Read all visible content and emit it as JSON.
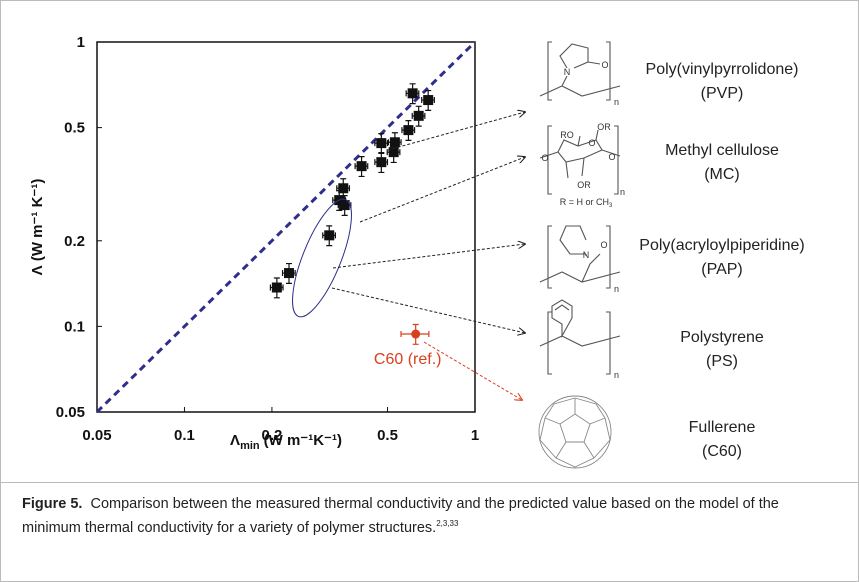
{
  "chart_data": {
    "type": "scatter",
    "log_x": true,
    "log_y": true,
    "xlim": [
      0.05,
      1
    ],
    "ylim": [
      0.05,
      1
    ],
    "xticks": [
      0.05,
      0.1,
      0.2,
      0.5,
      1
    ],
    "yticks": [
      0.05,
      0.1,
      0.2,
      0.5,
      1
    ],
    "y_label": "Λ (W m⁻¹ K⁻¹)",
    "x_label": {
      "symbol": "Λ",
      "subscript": "min",
      "units": "(W m⁻¹K⁻¹)"
    },
    "diagonal": {
      "x": [
        0.05,
        1
      ],
      "y": [
        0.05,
        1
      ],
      "color": "#2e2e8c"
    },
    "series": [
      {
        "color": "#111111",
        "marker": "square",
        "xerr": 0.05,
        "yerr": 0.08,
        "x": [
          0.208,
          0.229,
          0.315,
          0.341,
          0.352,
          0.356,
          0.407,
          0.476,
          0.476,
          0.525,
          0.53,
          0.59,
          0.64,
          0.61,
          0.69
        ],
        "y": [
          0.137,
          0.154,
          0.209,
          0.278,
          0.306,
          0.267,
          0.366,
          0.378,
          0.441,
          0.41,
          0.444,
          0.49,
          0.55,
          0.66,
          0.625
        ]
      },
      {
        "color": "#d9401f",
        "marker": "circle",
        "xerr": 0.11,
        "yerr": 0.08,
        "annotation": "C60 (ref.)",
        "x": [
          0.625
        ],
        "y": [
          0.094
        ]
      }
    ]
  },
  "structures": [
    {
      "name": "Poly(vinylpyrrolidone)",
      "abbr": "(PVP)",
      "atoms": [
        "N",
        "O",
        "n"
      ]
    },
    {
      "name": "Methyl cellulose",
      "abbr": "(MC)",
      "atoms": [
        "RO",
        "OR",
        "O",
        "O",
        "O",
        "OR",
        "n"
      ],
      "note": "R = H or CH",
      "note_sub": "3"
    },
    {
      "name": "Poly(acryloylpiperidine)",
      "abbr": "(PAP)",
      "atoms": [
        "N",
        "O",
        "n"
      ]
    },
    {
      "name": "Polystyrene",
      "abbr": "(PS)",
      "atoms": [
        "n"
      ]
    },
    {
      "name": "Fullerene",
      "abbr": "(C60)"
    }
  ],
  "caption": {
    "label": "Figure 5.",
    "text": "Comparison between the measured thermal conductivity and the predicted value based on the model of the minimum thermal conductivity for a variety of polymer structures.",
    "refs": "2,3,33"
  }
}
